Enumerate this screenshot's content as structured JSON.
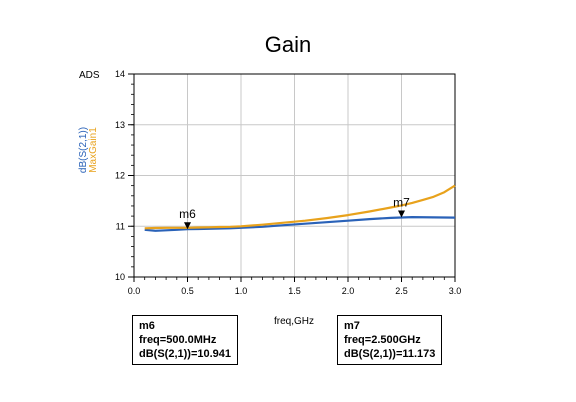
{
  "chart_data": {
    "type": "line",
    "title": "Gain",
    "corner_label": "ADS",
    "xlabel": "freq,GHz",
    "ylabel_series1": "dB(S(2,1))",
    "ylabel_series2": "MaxGain1",
    "xlim": [
      0.0,
      3.0
    ],
    "ylim": [
      10,
      14
    ],
    "x_major_ticks": [
      "0.0",
      "0.5",
      "1.0",
      "1.5",
      "2.0",
      "2.5",
      "3.0"
    ],
    "y_major_ticks": [
      "10",
      "11",
      "12",
      "13",
      "14"
    ],
    "grid": true,
    "series": [
      {
        "name": "dB(S(2,1))",
        "color": "#2a62b8",
        "x": [
          0.1,
          0.2,
          0.3,
          0.4,
          0.5,
          0.6,
          0.7,
          0.8,
          0.9,
          1.0,
          1.2,
          1.4,
          1.6,
          1.8,
          2.0,
          2.2,
          2.4,
          2.5,
          2.6,
          2.8,
          3.0
        ],
        "y": [
          10.93,
          10.91,
          10.92,
          10.93,
          10.941,
          10.945,
          10.95,
          10.955,
          10.96,
          10.97,
          10.99,
          11.02,
          11.05,
          11.08,
          11.11,
          11.14,
          11.165,
          11.173,
          11.18,
          11.175,
          11.17
        ]
      },
      {
        "name": "MaxGain1",
        "color": "#e8a21c",
        "x": [
          0.1,
          0.2,
          0.3,
          0.4,
          0.5,
          0.6,
          0.7,
          0.8,
          0.9,
          1.0,
          1.2,
          1.4,
          1.6,
          1.8,
          2.0,
          2.2,
          2.4,
          2.5,
          2.6,
          2.7,
          2.8,
          2.9,
          3.0
        ],
        "y": [
          10.96,
          10.965,
          10.97,
          10.97,
          10.97,
          10.975,
          10.98,
          10.985,
          10.99,
          11.0,
          11.03,
          11.07,
          11.11,
          11.16,
          11.22,
          11.29,
          11.37,
          11.41,
          11.46,
          11.52,
          11.58,
          11.67,
          11.8
        ]
      }
    ],
    "markers": [
      {
        "id": "m6",
        "x": 0.5,
        "y": 10.941,
        "lines": [
          "m6",
          "freq=500.0MHz",
          "dB(S(2,1))=10.941"
        ]
      },
      {
        "id": "m7",
        "x": 2.5,
        "y": 11.173,
        "lines": [
          "m7",
          "freq=2.500GHz",
          "dB(S(2,1))=11.173"
        ]
      }
    ]
  }
}
